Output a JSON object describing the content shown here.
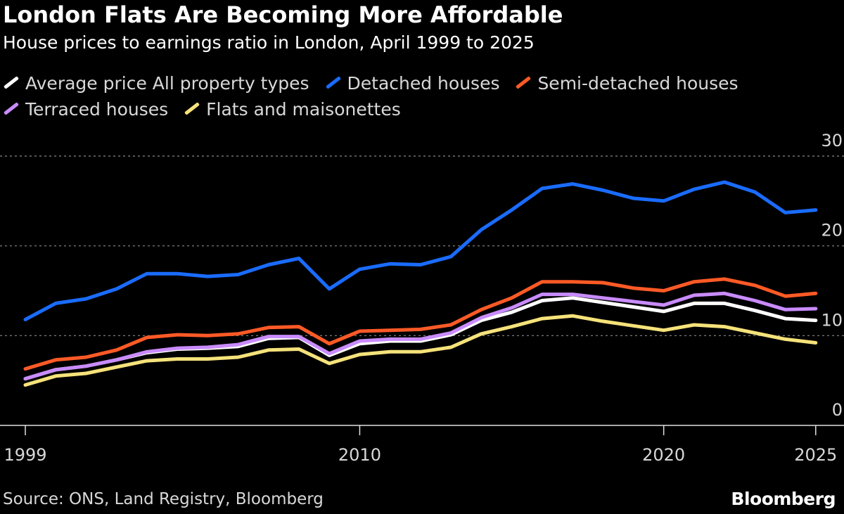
{
  "chart_data": {
    "type": "line",
    "title": "London Flats Are Becoming More Affordable",
    "subtitle": "House prices to earnings ratio in London, April 1999 to 2025",
    "xlabel": "",
    "ylabel": "",
    "x": [
      1999,
      2000,
      2001,
      2002,
      2003,
      2004,
      2005,
      2006,
      2007,
      2008,
      2009,
      2010,
      2011,
      2012,
      2013,
      2014,
      2015,
      2016,
      2017,
      2018,
      2019,
      2020,
      2021,
      2022,
      2023,
      2024,
      2025
    ],
    "x_ticks": [
      "1999",
      "2010",
      "2020",
      "2025"
    ],
    "x_tick_values": [
      1999,
      2010,
      2020,
      2025
    ],
    "xlim": [
      1999,
      2026
    ],
    "ylim": [
      0,
      30
    ],
    "y_ticks": [
      0,
      10,
      20,
      30
    ],
    "grid": true,
    "legend_placement": "top",
    "series": [
      {
        "name": "Flats and maisonettes",
        "color": "#f5e27a",
        "values": [
          4.5,
          5.5,
          5.8,
          6.5,
          7.2,
          7.4,
          7.4,
          7.6,
          8.4,
          8.5,
          6.9,
          7.9,
          8.2,
          8.2,
          8.7,
          10.2,
          11.0,
          11.9,
          12.2,
          11.6,
          11.1,
          10.6,
          11.2,
          11.0,
          10.3,
          9.6,
          9.2
        ]
      },
      {
        "name": "Average price All property types",
        "color": "#ffffff",
        "values": [
          5.2,
          6.2,
          6.6,
          7.3,
          8.1,
          8.5,
          8.6,
          8.8,
          9.7,
          9.8,
          7.8,
          9.1,
          9.4,
          9.4,
          10.1,
          11.7,
          12.6,
          13.9,
          14.2,
          13.7,
          13.2,
          12.7,
          13.6,
          13.6,
          12.8,
          11.9,
          11.7
        ]
      },
      {
        "name": "Terraced houses",
        "color": "#c98bff",
        "values": [
          5.2,
          6.2,
          6.6,
          7.3,
          8.2,
          8.6,
          8.7,
          9.0,
          9.9,
          9.9,
          8.0,
          9.4,
          9.6,
          9.6,
          10.3,
          12.0,
          13.1,
          14.6,
          14.6,
          14.2,
          13.8,
          13.4,
          14.5,
          14.7,
          13.9,
          12.9,
          13.0
        ]
      },
      {
        "name": "Semi-detached houses",
        "color": "#ff5a26",
        "values": [
          6.3,
          7.3,
          7.6,
          8.4,
          9.8,
          10.1,
          10.0,
          10.2,
          10.9,
          11.0,
          9.1,
          10.5,
          10.6,
          10.7,
          11.2,
          12.9,
          14.2,
          16.0,
          16.0,
          15.9,
          15.3,
          15.0,
          16.0,
          16.3,
          15.6,
          14.4,
          14.7
        ]
      },
      {
        "name": "Detached houses",
        "color": "#1a6cff",
        "values": [
          11.8,
          13.6,
          14.1,
          15.2,
          16.9,
          16.9,
          16.6,
          16.8,
          17.9,
          18.6,
          15.2,
          17.4,
          18.0,
          17.9,
          18.8,
          21.8,
          24.0,
          26.4,
          26.9,
          26.2,
          25.3,
          25.0,
          26.3,
          27.1,
          26.0,
          23.7,
          24.0
        ]
      }
    ]
  },
  "legend": [
    {
      "label": "Average price All property types",
      "color": "#ffffff"
    },
    {
      "label": "Detached houses",
      "color": "#1a6cff"
    },
    {
      "label": "Semi-detached houses",
      "color": "#ff5a26"
    },
    {
      "label": "Terraced houses",
      "color": "#c98bff"
    },
    {
      "label": "Flats and maisonettes",
      "color": "#f5e27a"
    }
  ],
  "footer": {
    "source": "Source: ONS, Land Registry, Bloomberg",
    "brand": "Bloomberg"
  }
}
